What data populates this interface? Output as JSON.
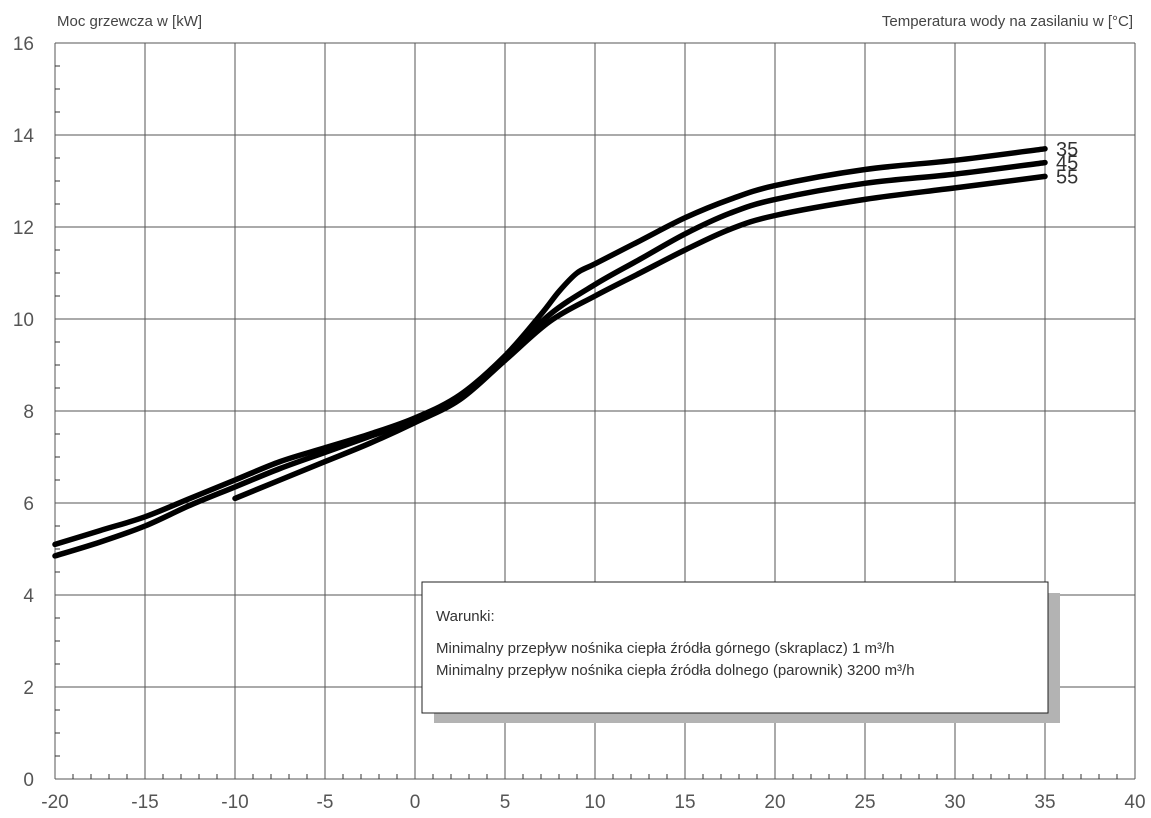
{
  "chart_data": {
    "type": "line",
    "ylabel": "Moc grzewcza w [kW]",
    "legend_title": "Temperatura wody na zasilaniu w [°C]",
    "xlim": [
      -20,
      40
    ],
    "ylim": [
      0,
      16
    ],
    "x_ticks": [
      "-20",
      "-15",
      "-10",
      "-5",
      "0",
      "5",
      "10",
      "15",
      "20",
      "25",
      "30",
      "35",
      "40"
    ],
    "y_ticks": [
      "0",
      "2",
      "4",
      "6",
      "8",
      "10",
      "12",
      "14",
      "16"
    ],
    "grid": true,
    "series": [
      {
        "name": "35",
        "points": [
          [
            -20,
            5.1
          ],
          [
            -17.5,
            5.4
          ],
          [
            -15,
            5.7
          ],
          [
            -12.5,
            6.1
          ],
          [
            -10,
            6.5
          ],
          [
            -7.5,
            6.9
          ],
          [
            -5,
            7.2
          ],
          [
            -2.5,
            7.5
          ],
          [
            0,
            7.85
          ],
          [
            2.5,
            8.35
          ],
          [
            5,
            9.2
          ],
          [
            7,
            10.1
          ],
          [
            8,
            10.6
          ],
          [
            9,
            11.0
          ],
          [
            10,
            11.2
          ],
          [
            12.5,
            11.7
          ],
          [
            15,
            12.2
          ],
          [
            17.5,
            12.6
          ],
          [
            20,
            12.9
          ],
          [
            25,
            13.25
          ],
          [
            30,
            13.45
          ],
          [
            35,
            13.7
          ]
        ]
      },
      {
        "name": "45",
        "points": [
          [
            -20,
            4.85
          ],
          [
            -17.5,
            5.15
          ],
          [
            -15,
            5.5
          ],
          [
            -12.5,
            5.95
          ],
          [
            -10,
            6.35
          ],
          [
            -7.5,
            6.75
          ],
          [
            -5,
            7.1
          ],
          [
            -2.5,
            7.45
          ],
          [
            0,
            7.8
          ],
          [
            2.5,
            8.3
          ],
          [
            5,
            9.15
          ],
          [
            7.5,
            10.1
          ],
          [
            10,
            10.75
          ],
          [
            12.5,
            11.3
          ],
          [
            15,
            11.85
          ],
          [
            17.5,
            12.3
          ],
          [
            20,
            12.6
          ],
          [
            25,
            12.95
          ],
          [
            30,
            13.15
          ],
          [
            35,
            13.4
          ]
        ]
      },
      {
        "name": "55",
        "points": [
          [
            -10,
            6.1
          ],
          [
            -7.5,
            6.5
          ],
          [
            -5,
            6.9
          ],
          [
            -2.5,
            7.3
          ],
          [
            0,
            7.75
          ],
          [
            2.5,
            8.25
          ],
          [
            5,
            9.1
          ],
          [
            7.5,
            9.95
          ],
          [
            10,
            10.5
          ],
          [
            12.5,
            11.0
          ],
          [
            15,
            11.5
          ],
          [
            17.5,
            11.95
          ],
          [
            20,
            12.25
          ],
          [
            25,
            12.6
          ],
          [
            30,
            12.85
          ],
          [
            35,
            13.1
          ]
        ]
      }
    ],
    "line_color": "#000000",
    "grid_color": "#555555"
  },
  "note": {
    "title": "Warunki:",
    "lines": [
      "Minimalny przepływ nośnika ciepła źródła górnego (skraplacz) 1 m³/h",
      "Minimalny przepływ nośnika ciepła źródła dolnego (parownik) 3200 m³/h"
    ],
    "position": "bottom-right"
  }
}
